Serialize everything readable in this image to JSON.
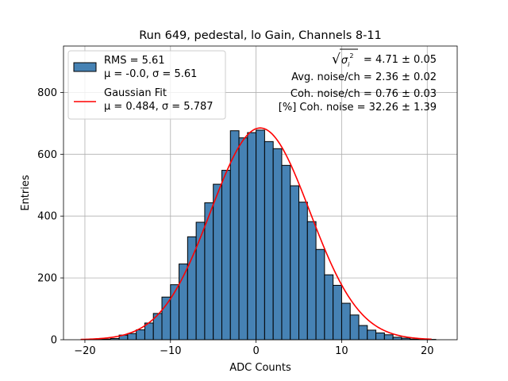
{
  "chart_data": {
    "type": "bar",
    "title": "Run 649, pedestal, lo Gain, Channels 8-11",
    "xlabel": "ADC Counts",
    "ylabel": "Entries",
    "xlim": [
      -22.5,
      23.5
    ],
    "ylim": [
      0,
      950
    ],
    "xticks": [
      -20,
      -10,
      0,
      10,
      20
    ],
    "yticks": [
      0,
      200,
      400,
      600,
      800
    ],
    "grid": true,
    "legend_position": "top-left",
    "bin_width": 1,
    "bins": [
      -19.5,
      -18.5,
      -17.5,
      -16.5,
      -15.5,
      -14.5,
      -13.5,
      -12.5,
      -11.5,
      -10.5,
      -9.5,
      -8.5,
      -7.5,
      -6.5,
      -5.5,
      -4.5,
      -3.5,
      -2.5,
      -1.5,
      -0.5,
      0.5,
      1.5,
      2.5,
      3.5,
      4.5,
      5.5,
      6.5,
      7.5,
      8.5,
      9.5,
      10.5,
      11.5,
      12.5,
      13.5,
      14.5,
      15.5,
      16.5,
      17.5,
      18.5,
      19.5,
      20.5
    ],
    "values": [
      1,
      1,
      2,
      4,
      15,
      20,
      32,
      54,
      85,
      138,
      178,
      245,
      333,
      380,
      443,
      503,
      548,
      676,
      653,
      670,
      678,
      641,
      618,
      564,
      498,
      445,
      382,
      292,
      210,
      176,
      118,
      80,
      46,
      31,
      22,
      16,
      8,
      5,
      2,
      1,
      1
    ],
    "hist_name": "RMS = 5.61",
    "hist_desc": "μ = -0.0, σ = 5.61",
    "fit": {
      "name": "Gaussian Fit",
      "desc": "μ = 0.484, σ = 5.787",
      "mu": 0.484,
      "sigma": 5.787,
      "amplitude": 685,
      "x_range": [
        -20.5,
        20.5
      ]
    },
    "colors": {
      "bar": "#4682b4",
      "bar_edge": "#000000",
      "fit_line": "#ff0000",
      "grid": "#b0b0b0"
    },
    "annotations": [
      "= 4.71 ± 0.05",
      "Avg. noise/ch = 2.36 ± 0.02",
      "Coh. noise/ch = 0.76 ± 0.03",
      "[%] Coh. noise = 32.26 ± 1.39"
    ]
  }
}
